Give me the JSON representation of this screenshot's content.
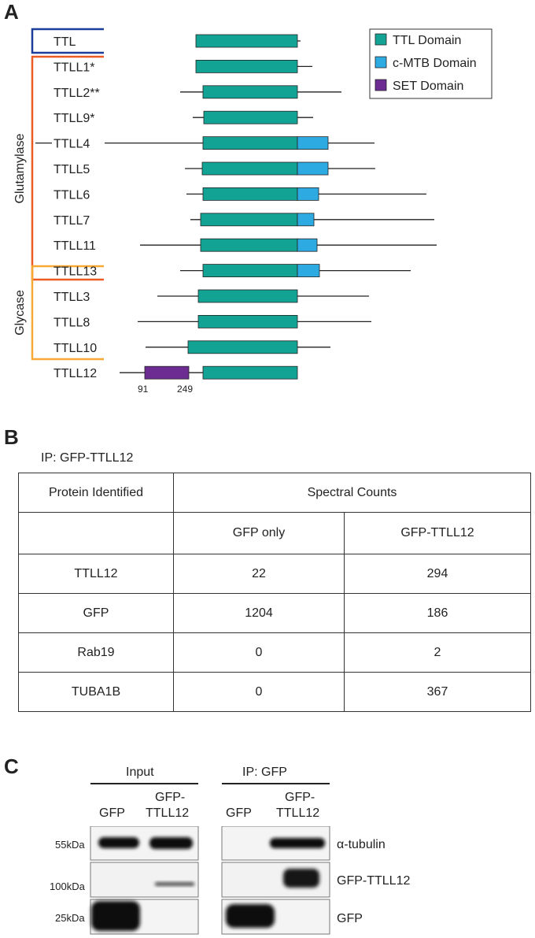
{
  "panels": {
    "a": "A",
    "b": "B",
    "c": "C"
  },
  "panel_a": {
    "legend": [
      {
        "label": "TTL Domain",
        "color": "#13a394"
      },
      {
        "label": "c-MTB Domain",
        "color": "#2eaae2"
      },
      {
        "label": "SET Domain",
        "color": "#6c2c91"
      }
    ],
    "groups": [
      {
        "label": "Glutamylase",
        "color": "#ee5a24"
      },
      {
        "label": "Glycase",
        "color": "#f7a934"
      }
    ],
    "ttl_bracket_color": "#1b3e9b",
    "proteins": [
      {
        "name": "TTL",
        "line": [
          378,
          382
        ],
        "ttl": [
          249,
          378
        ],
        "mtb": null
      },
      {
        "name": "TTLL1*",
        "line": [
          378,
          397
        ],
        "ttl": [
          249,
          378
        ],
        "mtb": null
      },
      {
        "name": "TTLL2**",
        "line": [
          229,
          434
        ],
        "ttl": [
          258,
          378
        ],
        "mtb": null
      },
      {
        "name": "TTLL9*",
        "line": [
          245,
          398
        ],
        "ttl": [
          259,
          378
        ],
        "mtb": null
      },
      {
        "name": "TTLL4",
        "line": [
          133,
          476
        ],
        "ttl": [
          258,
          378
        ],
        "mtb": [
          378,
          417
        ],
        "pre_line": [
          45,
          66
        ]
      },
      {
        "name": "TTLL5",
        "line": [
          235,
          477
        ],
        "ttl": [
          257,
          378
        ],
        "mtb": [
          378,
          417
        ]
      },
      {
        "name": "TTLL6",
        "line": [
          237,
          542
        ],
        "ttl": [
          258,
          378
        ],
        "mtb": [
          378,
          405
        ]
      },
      {
        "name": "TTLL7",
        "line": [
          242,
          552
        ],
        "ttl": [
          255,
          378
        ],
        "mtb": [
          378,
          399
        ]
      },
      {
        "name": "TTLL11",
        "line": [
          178,
          555
        ],
        "ttl": [
          255,
          378
        ],
        "mtb": [
          378,
          403
        ]
      },
      {
        "name": "TTLL13",
        "line": [
          229,
          522
        ],
        "ttl": [
          258,
          378
        ],
        "mtb": [
          378,
          406
        ]
      },
      {
        "name": "TTLL3",
        "line": [
          200,
          469
        ],
        "ttl": [
          252,
          378
        ],
        "mtb": null
      },
      {
        "name": "TTLL8",
        "line": [
          175,
          472
        ],
        "ttl": [
          252,
          378
        ],
        "mtb": null
      },
      {
        "name": "TTLL10",
        "line": [
          185,
          420
        ],
        "ttl": [
          239,
          378
        ],
        "mtb": null
      },
      {
        "name": "TTLL12",
        "line": [
          152,
          378
        ],
        "ttl": [
          258,
          378
        ],
        "mtb": null,
        "set": [
          184,
          240
        ]
      }
    ],
    "set_start": "91",
    "set_end": "249"
  },
  "panel_b": {
    "ip_label": "IP: GFP-TTLL12",
    "col_protein": "Protein Identified",
    "col_counts": "Spectral Counts",
    "sub_gfp": "GFP only",
    "sub_ttll12": "GFP-TTLL12",
    "rows": [
      {
        "protein": "TTLL12",
        "gfp": "22",
        "ttll12": "294"
      },
      {
        "protein": "GFP",
        "gfp": "1204",
        "ttll12": "186"
      },
      {
        "protein": "Rab19",
        "gfp": "0",
        "ttll12": "2"
      },
      {
        "protein": "TUBA1B",
        "gfp": "0",
        "ttll12": "367"
      }
    ]
  },
  "panel_c": {
    "input_label": "Input",
    "ip_label": "IP: GFP",
    "lane_gfp": "GFP",
    "lane_ttll12_line1": "GFP-",
    "lane_ttll12_line2": "TTLL12",
    "mw": [
      "55kDa",
      "100kDa",
      "25kDa"
    ],
    "blots": [
      "α-tubulin",
      "GFP-TTLL12",
      "GFP"
    ]
  }
}
